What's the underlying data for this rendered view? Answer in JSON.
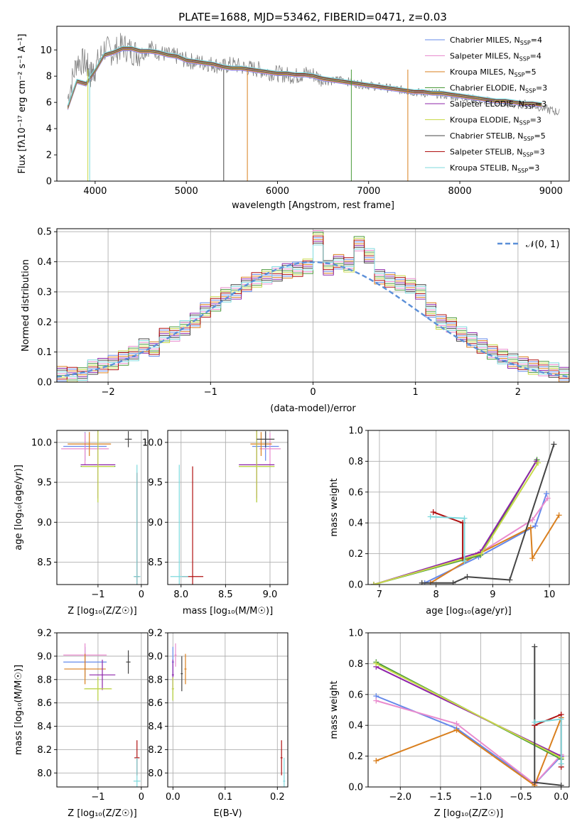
{
  "figure": {
    "title": "PLATE=1688, MJD=53462, FIBERID=0471, z=0.03"
  },
  "colors": {
    "grid": "#b0b0b0",
    "series": [
      "#6488ea",
      "#e98bce",
      "#d97f1e",
      "#4a9a3a",
      "#8e24aa",
      "#c8d94a",
      "#444444",
      "#b01010",
      "#7dd9dd"
    ],
    "normal": "#5b8fd8"
  },
  "chart_data": [
    {
      "id": "spectrum",
      "type": "line",
      "title": "PLATE=1688, MJD=53462, FIBERID=0471, z=0.03",
      "xlabel": "wavelength [Angstrom, rest frame]",
      "ylabel": "Flux [fλ10⁻¹⁷ erg cm⁻² s⁻¹ A⁻¹]",
      "xlim": [
        3580,
        9200
      ],
      "ylim": [
        0,
        11.8
      ],
      "xticks": [
        "4000",
        "5000",
        "6000",
        "7000",
        "8000",
        "9000"
      ],
      "yticks": [
        "0",
        "2",
        "4",
        "6",
        "8",
        "10"
      ],
      "grid": false,
      "legend_position": "top-right",
      "observed_x": [
        3700,
        3800,
        3900,
        3950,
        4000,
        4100,
        4200,
        4300,
        4400,
        4500,
        4600,
        4700,
        4800,
        4900,
        5000,
        5100,
        5200,
        5300,
        5400,
        5500,
        5600,
        5700,
        5800,
        5900,
        6000,
        6100,
        6200,
        6300,
        6400,
        6500,
        6600,
        6700,
        6800,
        6900,
        7000,
        7100,
        7200,
        7300,
        7400,
        7500,
        7600,
        7700,
        7800,
        7900,
        8000,
        8100,
        8200,
        8300,
        8400,
        8500,
        8600,
        8700,
        8800,
        8900,
        9000,
        9100
      ],
      "observed_y": [
        6.3,
        9.2,
        9.0,
        8.1,
        8.6,
        10.1,
        9.8,
        10.3,
        9.9,
        9.7,
        10.2,
        9.8,
        9.6,
        9.5,
        9.2,
        9.1,
        9.0,
        8.9,
        8.7,
        8.9,
        8.7,
        8.6,
        8.5,
        8.3,
        8.2,
        8.1,
        8.0,
        8.2,
        8.1,
        7.7,
        7.6,
        7.8,
        7.5,
        7.4,
        7.3,
        7.2,
        7.1,
        7.0,
        6.9,
        6.8,
        6.7,
        6.7,
        6.6,
        6.5,
        6.4,
        6.3,
        6.2,
        6.1,
        6.0,
        5.9,
        5.8,
        5.9,
        5.8,
        5.6,
        5.4,
        5.2
      ],
      "model_x": [
        3700,
        3800,
        3900,
        4000,
        4100,
        4200,
        4300,
        4400,
        4500,
        4600,
        4700,
        4800,
        4900,
        5000,
        5100,
        5200,
        5300,
        5400,
        5500,
        5600,
        5700,
        5800,
        5900,
        6000,
        6100,
        6200,
        6300,
        6400,
        6500,
        6600,
        6700,
        6800,
        6900,
        7000,
        7100,
        7200,
        7300,
        7400,
        7500,
        7600,
        7700,
        7800,
        7900,
        8000,
        8100,
        8200,
        8300,
        8400,
        8500,
        8600,
        8700,
        8800,
        8900
      ],
      "model_y": [
        5.6,
        7.6,
        7.4,
        8.4,
        9.6,
        9.8,
        10.1,
        10.1,
        9.9,
        9.9,
        9.8,
        9.6,
        9.5,
        9.2,
        9.1,
        9.0,
        8.9,
        8.7,
        8.6,
        8.6,
        8.5,
        8.4,
        8.3,
        8.2,
        8.2,
        8.1,
        8.1,
        8.0,
        7.8,
        7.7,
        7.6,
        7.5,
        7.4,
        7.3,
        7.2,
        7.1,
        7.0,
        6.9,
        6.8,
        6.8,
        6.7,
        6.7,
        6.6,
        6.5,
        6.4,
        6.3,
        6.2,
        6.1,
        6.1,
        6.0,
        5.9,
        5.9,
        5.8
      ],
      "series": [
        {
          "name": "Chabrier MILES, N_SSP=4",
          "name_main": "Chabrier MILES, N",
          "name_sub": "SSP",
          "name_end": "=4"
        },
        {
          "name": "Salpeter MILES, N_SSP=4",
          "name_main": "Salpeter MILES, N",
          "name_sub": "SSP",
          "name_end": "=4"
        },
        {
          "name": "Kroupa MILES, N_SSP=5",
          "name_main": "Kroupa MILES, N",
          "name_sub": "SSP",
          "name_end": "=5"
        },
        {
          "name": "Chabrier ELODIE, N_SSP=3",
          "name_main": "Chabrier ELODIE, N",
          "name_sub": "SSP",
          "name_end": "=3"
        },
        {
          "name": "Salpeter ELODIE, N_SSP=3",
          "name_main": "Salpeter ELODIE, N",
          "name_sub": "SSP",
          "name_end": "=3"
        },
        {
          "name": "Kroupa ELODIE, N_SSP=3",
          "name_main": "Kroupa ELODIE, N",
          "name_sub": "SSP",
          "name_end": "=3"
        },
        {
          "name": "Chabrier STELIB, N_SSP=5",
          "name_main": "Chabrier STELIB, N",
          "name_sub": "SSP",
          "name_end": "=5"
        },
        {
          "name": "Salpeter STELIB, N_SSP=3",
          "name_main": "Salpeter STELIB, N",
          "name_sub": "SSP",
          "name_end": "=3"
        },
        {
          "name": "Kroupa STELIB, N_SSP=3",
          "name_main": "Kroupa STELIB, N",
          "name_sub": "SSP",
          "name_end": "=3"
        }
      ]
    },
    {
      "id": "residuals",
      "type": "line",
      "xlabel": "(data-model)/error",
      "ylabel": "Normed distribution",
      "xlim": [
        -2.5,
        2.5
      ],
      "ylim": [
        0,
        0.51
      ],
      "xticks": [
        "−2",
        "−1",
        "0",
        "1",
        "2"
      ],
      "yticks": [
        "0.0",
        "0.1",
        "0.2",
        "0.3",
        "0.4",
        "0.5"
      ],
      "grid": true,
      "legend_position": "top-right",
      "legend_label": "𝒩(0, 1)",
      "bin_width": 0.1,
      "bin_start": -2.5,
      "hist_values": [
        0.028,
        0.025,
        0.024,
        0.05,
        0.055,
        0.065,
        0.08,
        0.095,
        0.12,
        0.11,
        0.155,
        0.16,
        0.18,
        0.205,
        0.24,
        0.26,
        0.29,
        0.3,
        0.325,
        0.34,
        0.35,
        0.36,
        0.37,
        0.375,
        0.385,
        0.48,
        0.38,
        0.4,
        0.39,
        0.46,
        0.42,
        0.35,
        0.34,
        0.33,
        0.32,
        0.3,
        0.24,
        0.2,
        0.19,
        0.16,
        0.14,
        0.12,
        0.1,
        0.085,
        0.07,
        0.06,
        0.05,
        0.045,
        0.04,
        0.025
      ]
    },
    {
      "id": "age-vs-Z",
      "type": "scatter",
      "xlabel": "Z [log₁₀(Z/Z☉)]",
      "ylabel": "age  [log₁₀(age/yr)]",
      "xlim": [
        -1.95,
        0.15
      ],
      "ylim": [
        8.22,
        10.15
      ],
      "xticks": [
        "−1",
        "0"
      ],
      "yticks": [
        "8.5",
        "9.0",
        "9.5",
        "10.0"
      ],
      "grid": true,
      "points": [
        {
          "x": -1.3,
          "y": 9.95,
          "ex": 0.5,
          "ey": 0.18
        },
        {
          "x": -1.3,
          "y": 9.92,
          "ex": 0.55,
          "ey": 0.2
        },
        {
          "x": -1.2,
          "y": 9.98,
          "ex": 0.5,
          "ey": 0.15
        },
        {
          "x": -1.0,
          "y": 9.7,
          "ex": 0.4,
          "ey": 0.45
        },
        {
          "x": -1.0,
          "y": 9.72,
          "ex": 0.4,
          "ey": 0.42
        },
        {
          "x": -1.0,
          "y": 9.7,
          "ex": 0.38,
          "ey": 0.45
        },
        {
          "x": -0.3,
          "y": 10.04,
          "ex": 0.08,
          "ey": 0.1
        },
        {
          "x": -0.1,
          "y": 8.32,
          "ex": 0.06,
          "ey": 1.3
        },
        {
          "x": -0.1,
          "y": 8.32,
          "ex": 0.08,
          "ey": 1.4
        }
      ]
    },
    {
      "id": "age-vs-mass",
      "type": "scatter",
      "xlabel": "mass [log₁₀(M/M☉)]",
      "ylabel": "",
      "xlim": [
        7.85,
        9.2
      ],
      "ylim": [
        8.22,
        10.15
      ],
      "xticks": [
        "8.0",
        "8.5",
        "9.0"
      ],
      "yticks": [
        "8.5",
        "9.0",
        "9.5",
        "10.0"
      ],
      "grid": true,
      "points": [
        {
          "x": 8.95,
          "y": 9.95,
          "ex": 0.15,
          "ey": 0.18
        },
        {
          "x": 9.0,
          "y": 9.92,
          "ex": 0.12,
          "ey": 0.2
        },
        {
          "x": 8.9,
          "y": 9.98,
          "ex": 0.12,
          "ey": 0.15
        },
        {
          "x": 8.85,
          "y": 9.7,
          "ex": 0.2,
          "ey": 0.45
        },
        {
          "x": 8.85,
          "y": 9.72,
          "ex": 0.2,
          "ey": 0.42
        },
        {
          "x": 8.85,
          "y": 9.7,
          "ex": 0.2,
          "ey": 0.45
        },
        {
          "x": 8.95,
          "y": 10.04,
          "ex": 0.1,
          "ey": 0.1
        },
        {
          "x": 8.13,
          "y": 8.32,
          "ex": 0.12,
          "ey": 1.38
        },
        {
          "x": 7.98,
          "y": 8.32,
          "ex": 0.1,
          "ey": 1.4
        }
      ]
    },
    {
      "id": "weight-vs-age",
      "type": "line",
      "xlabel": "age  [log₁₀(age/yr)]",
      "ylabel": "mass weight",
      "xlim": [
        6.8,
        10.35
      ],
      "ylim": [
        0,
        1
      ],
      "xticks": [
        "7",
        "8",
        "9",
        "10"
      ],
      "yticks": [
        "0.0",
        "0.2",
        "0.4",
        "0.6",
        "0.8",
        "1.0"
      ],
      "grid": true,
      "series": [
        {
          "x": [
            7.8,
            8.75,
            9.75,
            9.95
          ],
          "y": [
            0.01,
            0.18,
            0.38,
            0.59
          ]
        },
        {
          "x": [
            7.9,
            8.75,
            9.7,
            9.97
          ],
          "y": [
            0.01,
            0.2,
            0.42,
            0.56
          ]
        },
        {
          "x": [
            7.9,
            8.7,
            9.67,
            9.7,
            10.17
          ],
          "y": [
            0.01,
            0.19,
            0.37,
            0.17,
            0.45
          ]
        },
        {
          "x": [
            6.9,
            8.78,
            9.78
          ],
          "y": [
            0.0,
            0.19,
            0.81
          ]
        },
        {
          "x": [
            6.9,
            8.78,
            9.77
          ],
          "y": [
            0.0,
            0.21,
            0.8
          ]
        },
        {
          "x": [
            6.9,
            8.8,
            9.8
          ],
          "y": [
            0.0,
            0.2,
            0.79
          ]
        },
        {
          "x": [
            7.75,
            8.3,
            8.55,
            9.3,
            10.08
          ],
          "y": [
            0.01,
            0.01,
            0.05,
            0.03,
            0.91
          ]
        },
        {
          "x": [
            7.95,
            8.47,
            8.47
          ],
          "y": [
            0.47,
            0.4,
            0.17
          ]
        },
        {
          "x": [
            7.9,
            8.5,
            8.5
          ],
          "y": [
            0.44,
            0.43,
            0.15
          ]
        }
      ]
    },
    {
      "id": "mass-vs-Z",
      "type": "scatter",
      "xlabel": "Z [log₁₀(Z/Z☉)]",
      "ylabel": "mass [log₁₀(M/M☉)]",
      "xlim": [
        -1.95,
        0.15
      ],
      "ylim": [
        7.88,
        9.2
      ],
      "xticks": [
        "−1",
        "0"
      ],
      "yticks": [
        "8.0",
        "8.2",
        "8.4",
        "8.6",
        "8.8",
        "9.0",
        "9.2"
      ],
      "grid": true,
      "points": [
        {
          "x": -1.3,
          "y": 8.95,
          "ex": 0.5,
          "ey": 0.13
        },
        {
          "x": -1.3,
          "y": 9.01,
          "ex": 0.5,
          "ey": 0.1
        },
        {
          "x": -1.3,
          "y": 8.89,
          "ex": 0.48,
          "ey": 0.13
        },
        {
          "x": -1.0,
          "y": 8.72,
          "ex": 0.3,
          "ey": 0.1
        },
        {
          "x": -0.9,
          "y": 8.84,
          "ex": 0.3,
          "ey": 0.13
        },
        {
          "x": -1.0,
          "y": 8.72,
          "ex": 0.32,
          "ey": 0.1
        },
        {
          "x": -0.3,
          "y": 8.95,
          "ex": 0.05,
          "ey": 0.1
        },
        {
          "x": -0.1,
          "y": 8.13,
          "ex": 0.06,
          "ey": 0.15
        },
        {
          "x": -0.1,
          "y": 7.93,
          "ex": 0.08,
          "ey": 0.2
        }
      ]
    },
    {
      "id": "mass-vs-ebv",
      "type": "scatter",
      "xlabel": "E(B-V)",
      "ylabel": "",
      "xlim": [
        -0.01,
        0.22
      ],
      "ylim": [
        7.88,
        9.2
      ],
      "xticks": [
        "0.0",
        "0.1",
        "0.2"
      ],
      "yticks": [
        "8.0",
        "8.2",
        "8.4",
        "8.6",
        "8.8",
        "9.0",
        "9.2"
      ],
      "grid": true,
      "points": [
        {
          "x": 0.0,
          "y": 8.95,
          "ex": 0.002,
          "ey": 0.13
        },
        {
          "x": 0.005,
          "y": 9.01,
          "ex": 0.002,
          "ey": 0.1
        },
        {
          "x": 0.024,
          "y": 8.89,
          "ex": 0.002,
          "ey": 0.13
        },
        {
          "x": 0.0,
          "y": 8.72,
          "ex": 0.002,
          "ey": 0.1
        },
        {
          "x": 0.0,
          "y": 8.84,
          "ex": 0.002,
          "ey": 0.13
        },
        {
          "x": 0.0,
          "y": 8.72,
          "ex": 0.002,
          "ey": 0.1
        },
        {
          "x": 0.017,
          "y": 8.85,
          "ex": 0.002,
          "ey": 0.15
        },
        {
          "x": 0.208,
          "y": 8.13,
          "ex": 0.002,
          "ey": 0.15
        },
        {
          "x": 0.213,
          "y": 7.93,
          "ex": 0.002,
          "ey": 0.2
        }
      ]
    },
    {
      "id": "weight-vs-Z",
      "type": "line",
      "xlabel": "Z [log₁₀(Z/Z☉)]",
      "ylabel": "mass weight",
      "xlim": [
        -2.4,
        0.1
      ],
      "ylim": [
        0,
        1
      ],
      "xticks": [
        "−2.0",
        "−1.5",
        "−1.0",
        "−0.5",
        "0.0"
      ],
      "yticks": [
        "0.0",
        "0.2",
        "0.4",
        "0.6",
        "0.8",
        "1.0"
      ],
      "grid": true,
      "series": [
        {
          "x": [
            -2.3,
            -1.3,
            -0.33,
            0.0
          ],
          "y": [
            0.59,
            0.38,
            0.02,
            0.2
          ]
        },
        {
          "x": [
            -2.3,
            -1.3,
            -0.33,
            0.0
          ],
          "y": [
            0.56,
            0.41,
            0.02,
            0.21
          ]
        },
        {
          "x": [
            -2.3,
            -1.3,
            -0.33,
            0.0
          ],
          "y": [
            0.17,
            0.37,
            0.01,
            0.45
          ]
        },
        {
          "x": [
            -2.3,
            0.0
          ],
          "y": [
            0.81,
            0.18
          ]
        },
        {
          "x": [
            -2.3,
            0.0
          ],
          "y": [
            0.78,
            0.2
          ]
        },
        {
          "x": [
            -2.3,
            0.0
          ],
          "y": [
            0.8,
            0.19
          ]
        },
        {
          "x": [
            -0.33,
            -0.33,
            0.0
          ],
          "y": [
            0.91,
            0.03,
            0.01
          ]
        },
        {
          "x": [
            -0.33,
            0.0,
            0.0
          ],
          "y": [
            0.4,
            0.47,
            0.13
          ]
        },
        {
          "x": [
            -0.33,
            0.0,
            0.0
          ],
          "y": [
            0.42,
            0.44,
            0.15
          ]
        }
      ]
    }
  ]
}
